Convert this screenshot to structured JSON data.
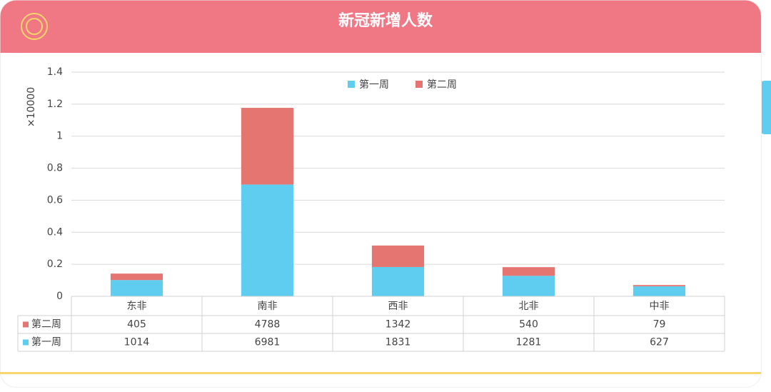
{
  "chart_data": {
    "type": "bar",
    "stacked": true,
    "title": "新冠新增人数",
    "y_label": "×10000",
    "categories": [
      "东非",
      "南非",
      "西非",
      "北非",
      "中非"
    ],
    "series": [
      {
        "name": "第一周",
        "color": "#5ecdef",
        "values": [
          1014,
          6981,
          1831,
          1281,
          627
        ]
      },
      {
        "name": "第二周",
        "color": "#e57570",
        "values": [
          405,
          4788,
          1342,
          540,
          79
        ]
      }
    ],
    "ylim": [
      0,
      14000
    ],
    "yticks": [
      0,
      {
        "value": 2000,
        "label": "0.2"
      },
      {
        "value": 4000,
        "label": "0.4"
      },
      {
        "value": 6000,
        "label": "0.6"
      },
      {
        "value": 8000,
        "label": "0.8"
      },
      {
        "value": 10000,
        "label": "1"
      },
      {
        "value": 12000,
        "label": "1.2"
      },
      {
        "value": 14000,
        "label": "1.4"
      }
    ],
    "grid": true,
    "legend": "top",
    "data_table": true
  }
}
